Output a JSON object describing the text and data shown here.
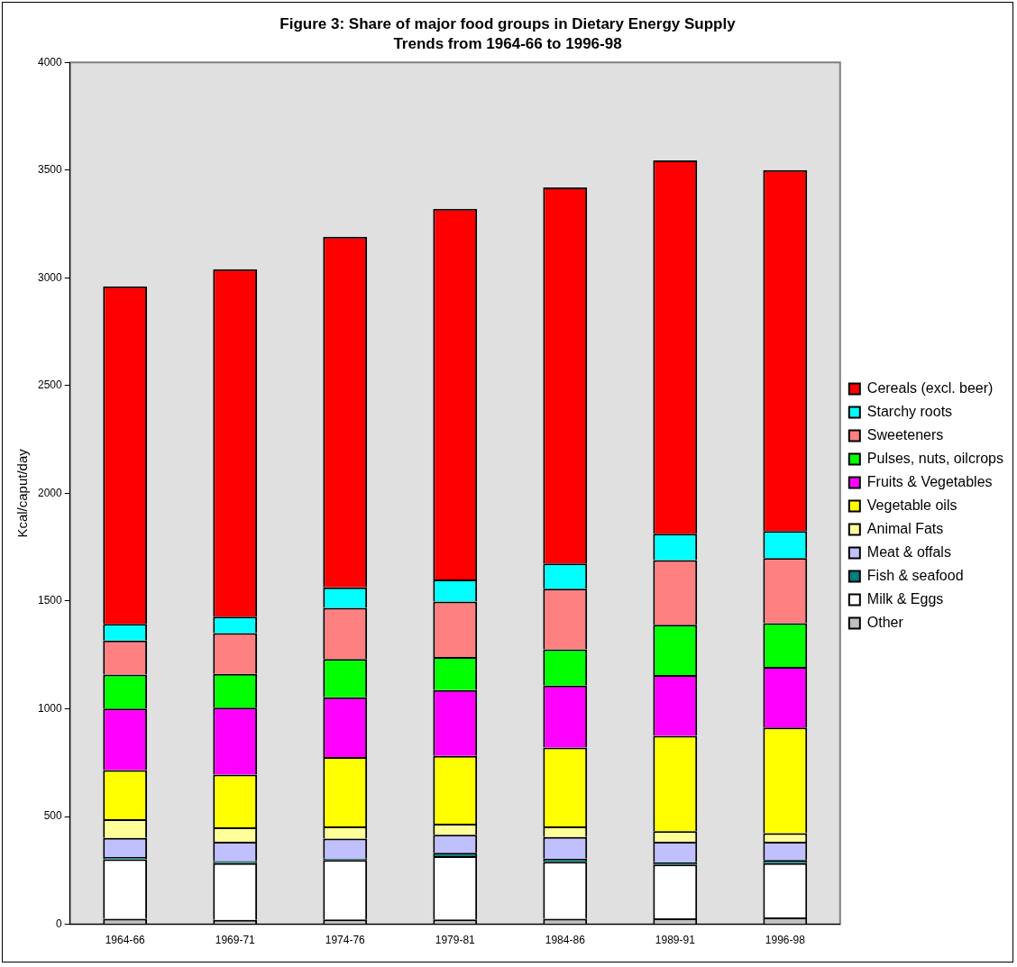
{
  "chart_data": {
    "type": "bar",
    "title": "Figure 3:  Share of major food groups in Dietary Energy Supply",
    "subtitle": "Trends from 1964-66 to 1996-98",
    "ylabel": "Kcal/caput/day",
    "categories": [
      "1964-66",
      "1969-71",
      "1974-76",
      "1979-81",
      "1984-86",
      "1989-91",
      "1996-98"
    ],
    "stacked": true,
    "ylim": [
      0,
      4000
    ],
    "yticks": [
      0,
      500,
      1000,
      1500,
      2000,
      2500,
      3000,
      3500,
      4000
    ],
    "grid": false,
    "legend": "right",
    "series": [
      {
        "name": "Other",
        "color": "#c0c0c0",
        "values": [
          25,
          20,
          22,
          22,
          25,
          28,
          32
        ]
      },
      {
        "name": "Milk & Eggs",
        "color": "#ffffff",
        "values": [
          277,
          264,
          276,
          294,
          265,
          249,
          252
        ]
      },
      {
        "name": "Fish & seafood",
        "color": "#008080",
        "values": [
          10,
          9,
          7,
          16,
          15,
          11,
          14
        ]
      },
      {
        "name": "Meat & offals",
        "color": "#c0c0ff",
        "values": [
          89,
          90,
          93,
          84,
          100,
          95,
          85
        ]
      },
      {
        "name": "Animal Fats",
        "color": "#ffff99",
        "values": [
          87,
          67,
          56,
          51,
          49,
          49,
          40
        ]
      },
      {
        "name": "Vegetable oils",
        "color": "#ffff00",
        "values": [
          228,
          245,
          322,
          314,
          366,
          443,
          490
        ]
      },
      {
        "name": "Fruits & Vegetables",
        "color": "#ff00ff",
        "values": [
          285,
          310,
          277,
          306,
          288,
          282,
          281
        ]
      },
      {
        "name": "Pulses, nuts, oilcrops",
        "color": "#00ff00",
        "values": [
          158,
          157,
          178,
          153,
          168,
          233,
          203
        ]
      },
      {
        "name": "Sweeteners",
        "color": "#ff8080",
        "values": [
          158,
          189,
          237,
          258,
          281,
          300,
          303
        ]
      },
      {
        "name": "Starchy roots",
        "color": "#00ffff",
        "values": [
          77,
          77,
          96,
          102,
          117,
          122,
          125
        ]
      },
      {
        "name": "Cereals (excl. beer)",
        "color": "#ff0000",
        "values": [
          1566,
          1612,
          1626,
          1720,
          1746,
          1733,
          1675
        ]
      }
    ]
  }
}
